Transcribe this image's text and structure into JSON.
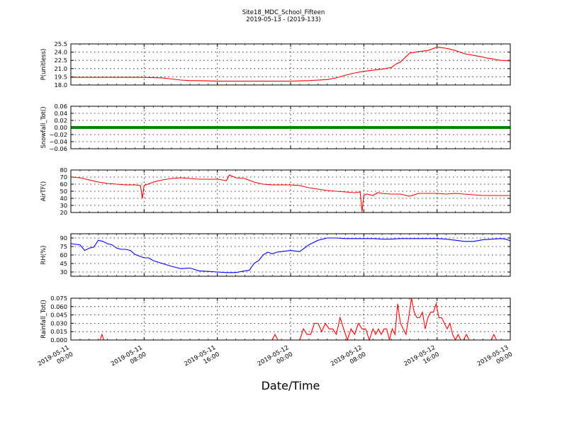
{
  "figure": {
    "title": "Site18_MDC_School_Fifteen",
    "subtitle": "2019-05-13 - (2019-133)",
    "xlabel": "Date/Time",
    "x_ticks": [
      "2019-05-11\n00:00",
      "2019-05-11\n08:00",
      "2019-05-11\n16:00",
      "2019-05-12\n00:00",
      "2019-05-12\n08:00",
      "2019-05-12\n16:00",
      "2019-05-13\n00:00"
    ],
    "grid": true
  },
  "chart_data": [
    {
      "type": "line",
      "key": "p",
      "ylabel": "P(unitless)",
      "ylim": [
        18.0,
        25.5
      ],
      "yticks": [
        18.0,
        19.5,
        21.0,
        22.5,
        24.0,
        25.5
      ],
      "ytick_labels": [
        "18.0",
        "19.5",
        "21.0",
        "22.5",
        "24.0",
        "25.5"
      ],
      "color": "#ff0000",
      "x_hours": [
        0,
        2,
        4,
        6,
        8,
        9,
        10,
        11,
        12,
        13,
        14,
        16,
        18,
        20,
        22,
        24,
        26,
        28,
        29,
        30,
        31,
        32,
        33,
        34,
        35,
        35.5,
        36,
        37,
        38,
        39,
        40,
        41,
        41.5,
        42,
        43,
        44,
        45,
        45.5,
        46,
        46.5,
        47,
        48
      ],
      "values": [
        19.4,
        19.4,
        19.4,
        19.4,
        19.4,
        19.35,
        19.3,
        19.1,
        18.9,
        18.8,
        18.8,
        18.7,
        18.7,
        18.7,
        18.7,
        18.7,
        18.8,
        19.0,
        19.3,
        19.8,
        20.2,
        20.5,
        20.7,
        20.9,
        21.2,
        21.8,
        22.2,
        23.8,
        24.1,
        24.3,
        24.9,
        24.7,
        24.5,
        24.3,
        23.7,
        23.4,
        23.1,
        22.9,
        22.8,
        22.6,
        22.5,
        22.4
      ]
    },
    {
      "type": "line",
      "key": "snow",
      "ylabel": "Snowfall_Tot()",
      "ylim": [
        -0.06,
        0.06
      ],
      "yticks": [
        -0.06,
        -0.04,
        -0.02,
        0.0,
        0.02,
        0.04,
        0.06
      ],
      "ytick_labels": [
        "−0.06",
        "−0.04",
        "−0.02",
        "0.00",
        "0.02",
        "0.04",
        "0.06"
      ],
      "color": "#008000",
      "x_hours": [
        0,
        48
      ],
      "values": [
        0.0,
        0.0
      ]
    },
    {
      "type": "line",
      "key": "airt",
      "ylabel": "AirTF()",
      "ylim": [
        20,
        80
      ],
      "yticks": [
        20,
        30,
        40,
        50,
        60,
        70,
        80
      ],
      "ytick_labels": [
        "20",
        "30",
        "40",
        "50",
        "60",
        "70",
        "80"
      ],
      "color": "#ff0000",
      "x_hours": [
        0,
        1,
        2,
        3,
        4,
        5,
        6,
        7,
        7.6,
        7.8,
        8.0,
        8.2,
        9,
        10,
        11,
        12,
        13,
        14,
        15,
        16,
        17,
        17.3,
        17.5,
        18,
        19,
        20,
        21,
        22,
        23,
        24,
        25,
        26,
        27,
        28,
        29,
        30,
        31,
        31.6,
        31.8,
        32.0,
        32.3,
        33,
        33.5,
        34,
        35,
        36,
        37,
        38,
        39,
        40,
        41,
        42,
        43,
        44,
        45,
        46,
        47,
        48
      ],
      "values": [
        70,
        69,
        66,
        63,
        61,
        60,
        59,
        59,
        58,
        40,
        58,
        59,
        63,
        66,
        68,
        69,
        68,
        67,
        67,
        67,
        65,
        73,
        72,
        69,
        68,
        63,
        60,
        59,
        59,
        59,
        58,
        55,
        53,
        51,
        50,
        49,
        48,
        49,
        21,
        44,
        46,
        44,
        48,
        47,
        46,
        46,
        43,
        47,
        47,
        47,
        46,
        47,
        46,
        45,
        44,
        44,
        44,
        44
      ]
    },
    {
      "type": "line",
      "key": "rh",
      "ylabel": "RH(%)",
      "ylim": [
        22.5,
        97.5
      ],
      "yticks": [
        30,
        45,
        60,
        75,
        90
      ],
      "ytick_labels": [
        "30",
        "45",
        "60",
        "75",
        "90"
      ],
      "color": "#0000ff",
      "x_hours": [
        0,
        1,
        1.5,
        2,
        2.5,
        3,
        3.5,
        4,
        4.5,
        5,
        5.5,
        6,
        6.5,
        7,
        7.5,
        8,
        8.5,
        9,
        10,
        11,
        12,
        13,
        14,
        15,
        16,
        17,
        18,
        19,
        19.5,
        20,
        20.5,
        21,
        21.5,
        22,
        22.5,
        23,
        24,
        25,
        26,
        27,
        28,
        29,
        30,
        31,
        32,
        33,
        34,
        35,
        36,
        37,
        38,
        39,
        40,
        41,
        42,
        43,
        44,
        45,
        46,
        47,
        47.5,
        48
      ],
      "values": [
        80,
        78,
        68,
        72,
        74,
        86,
        84,
        80,
        78,
        72,
        70,
        70,
        68,
        61,
        58,
        55,
        55,
        50,
        45,
        40,
        36,
        37,
        32,
        31,
        30,
        29,
        29,
        32,
        33,
        45,
        50,
        60,
        65,
        62,
        65,
        66,
        68,
        66,
        78,
        86,
        90,
        90,
        89,
        89,
        89,
        89,
        88,
        88,
        89,
        89,
        89,
        89,
        89,
        88,
        86,
        84,
        84,
        87,
        88,
        89,
        88,
        85
      ]
    },
    {
      "type": "line",
      "key": "rain",
      "ylabel": "Rainfall_Tot()",
      "ylim": [
        0.0,
        0.075
      ],
      "yticks": [
        0.0,
        0.015,
        0.03,
        0.045,
        0.06,
        0.075
      ],
      "ytick_labels": [
        "0.000",
        "0.015",
        "0.030",
        "0.045",
        "0.060",
        "0.075"
      ],
      "color": "#ff0000",
      "x_hours": [
        0,
        3.2,
        3.4,
        3.6,
        22.0,
        22.3,
        22.6,
        25.0,
        25.4,
        25.8,
        26.2,
        26.6,
        27.0,
        27.4,
        27.8,
        28.2,
        28.6,
        29.0,
        29.4,
        29.8,
        30.2,
        30.6,
        31.0,
        31.4,
        31.8,
        32.2,
        32.6,
        33.0,
        33.3,
        33.6,
        33.9,
        34.2,
        34.5,
        34.8,
        35.1,
        35.4,
        35.7,
        36.0,
        36.3,
        36.6,
        36.9,
        37.2,
        37.5,
        37.8,
        38.1,
        38.4,
        38.7,
        39.0,
        39.3,
        39.6,
        39.9,
        40.2,
        40.5,
        40.8,
        41.1,
        41.4,
        41.7,
        42.0,
        42.3,
        42.6,
        42.9,
        43.2,
        43.5,
        43.8,
        44.1,
        45.0,
        45.3,
        45.6,
        45.9,
        46.2,
        46.5,
        46.8,
        47.1,
        48
      ],
      "values": [
        0,
        0,
        0.01,
        0,
        0,
        0.01,
        0,
        0,
        0.02,
        0.01,
        0.01,
        0.03,
        0.03,
        0.015,
        0.03,
        0.02,
        0.02,
        0.01,
        0.04,
        0.02,
        0,
        0.02,
        0.01,
        0.03,
        0.02,
        0.02,
        0,
        0.02,
        0.01,
        0.02,
        0.01,
        0.02,
        0.02,
        0,
        0.02,
        0.01,
        0.065,
        0.03,
        0.02,
        0.01,
        0.04,
        0.075,
        0.05,
        0.04,
        0.04,
        0.05,
        0.02,
        0.04,
        0.05,
        0.05,
        0.065,
        0.04,
        0.04,
        0.03,
        0.02,
        0.03,
        0.01,
        0,
        0.01,
        0,
        0,
        0.01,
        0,
        0,
        0,
        0,
        0,
        0,
        0,
        0.01,
        0,
        0,
        0,
        0
      ]
    }
  ]
}
